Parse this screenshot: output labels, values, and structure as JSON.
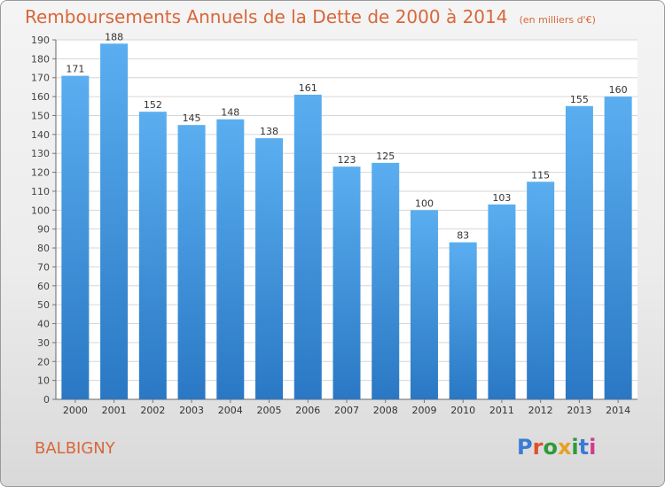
{
  "chart_data": {
    "type": "bar",
    "title": "Remboursements Annuels de la Dette de 2000 à 2014",
    "subtitle": "(en milliers d'€)",
    "categories": [
      "2000",
      "2001",
      "2002",
      "2003",
      "2004",
      "2005",
      "2006",
      "2007",
      "2008",
      "2009",
      "2010",
      "2011",
      "2012",
      "2013",
      "2014"
    ],
    "values": [
      171,
      188,
      152,
      145,
      148,
      138,
      161,
      123,
      125,
      100,
      83,
      103,
      115,
      155,
      160
    ],
    "ylim": [
      0,
      190
    ],
    "ytick_step": 10,
    "grid": true,
    "bar_color": "#3f94dc"
  },
  "footer": {
    "city": "BALBIGNY",
    "logo": "Proxiti"
  },
  "colors": {
    "accent": "#d8673a"
  }
}
